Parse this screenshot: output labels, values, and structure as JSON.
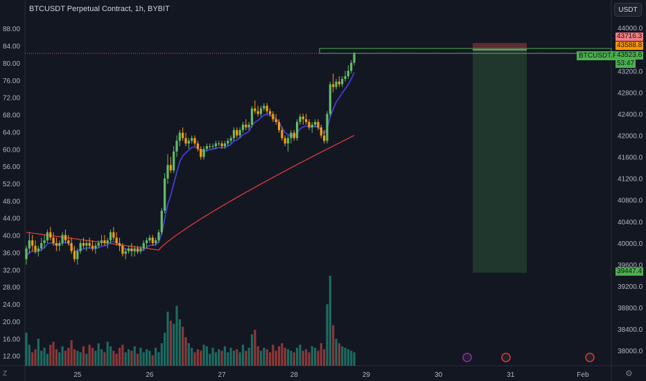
{
  "title": "BTCUSDT Perpetual Contract, 1h, BYBIT",
  "currency_button": "USDT",
  "symbol_tag": "BTCUSDT.P",
  "current_price": "43523.6",
  "countdown": "53:47",
  "tp_price": "43716.3",
  "entry_price": "43588.8",
  "sl_price": "39447.4",
  "logo_letter": "Z",
  "settings_icon": "gear-icon",
  "colors": {
    "up": "#26a69a",
    "down": "#ef5350",
    "up_candle": "#66bb6a",
    "down_candle": "#f59e0b",
    "ma_fast": "#3f3fd6",
    "ma_slow": "#e03a3a",
    "target": "#4caf50",
    "stop": "#ef5350"
  },
  "chart_data": {
    "type": "candlestick",
    "left_axis": {
      "ticks": [
        "88.00",
        "84.00",
        "80.00",
        "76.00",
        "72.00",
        "68.00",
        "64.00",
        "60.00",
        "56.00",
        "52.00",
        "48.00",
        "44.00",
        "40.00",
        "36.00",
        "32.00",
        "28.00",
        "24.00",
        "20.00",
        "16.00",
        "12.00"
      ],
      "range": [
        9.7,
        89.8
      ]
    },
    "right_axis": {
      "ticks": [
        "44000.0",
        "43200.0",
        "42800.0",
        "42400.0",
        "42000.0",
        "41600.0",
        "41200.0",
        "40800.0",
        "40400.0",
        "40000.0",
        "39600.0",
        "39200.0",
        "38800.0",
        "38400.0",
        "38000.0"
      ],
      "range": [
        37720,
        44130
      ]
    },
    "x_ticks": [
      "25",
      "26",
      "27",
      "28",
      "29",
      "30",
      "31",
      "Feb"
    ],
    "x_tick_slots": [
      17,
      41,
      65,
      89,
      113,
      137,
      161,
      185
    ],
    "candles_hourly": [
      [
        39700,
        39950,
        39600,
        39900
      ],
      [
        39900,
        40200,
        39800,
        40050
      ],
      [
        40050,
        40150,
        39850,
        39950
      ],
      [
        39950,
        40050,
        39800,
        39850
      ],
      [
        39850,
        39950,
        39750,
        39900
      ],
      [
        39900,
        40100,
        39850,
        40000
      ],
      [
        40000,
        40150,
        39900,
        40050
      ],
      [
        40050,
        40250,
        40000,
        40200
      ],
      [
        40200,
        40300,
        40050,
        40100
      ],
      [
        40100,
        40200,
        39950,
        40000
      ],
      [
        40000,
        40100,
        39850,
        39950
      ],
      [
        39950,
        40050,
        39850,
        40000
      ],
      [
        40000,
        40200,
        39950,
        40150
      ],
      [
        40150,
        40250,
        40000,
        40050
      ],
      [
        40050,
        40150,
        39950,
        40000
      ],
      [
        40000,
        40100,
        39800,
        39850
      ],
      [
        39850,
        39950,
        39650,
        39700
      ],
      [
        39700,
        39900,
        39600,
        39850
      ],
      [
        39850,
        40050,
        39800,
        40000
      ],
      [
        40000,
        40100,
        39900,
        39950
      ],
      [
        39950,
        40050,
        39850,
        40000
      ],
      [
        40000,
        40100,
        39900,
        39950
      ],
      [
        39950,
        40050,
        39850,
        39900
      ],
      [
        39900,
        40000,
        39800,
        39950
      ],
      [
        39950,
        40050,
        39900,
        40000
      ],
      [
        40000,
        40150,
        39950,
        40050
      ],
      [
        40050,
        40150,
        39950,
        40000
      ],
      [
        40000,
        40100,
        39900,
        40050
      ],
      [
        40050,
        40250,
        40000,
        40200
      ],
      [
        40200,
        40300,
        40050,
        40100
      ],
      [
        40100,
        40200,
        39950,
        40000
      ],
      [
        40000,
        40100,
        39850,
        39950
      ],
      [
        39950,
        40000,
        39750,
        39800
      ],
      [
        39800,
        39900,
        39700,
        39850
      ],
      [
        39850,
        39950,
        39800,
        39900
      ],
      [
        39900,
        40000,
        39750,
        39850
      ],
      [
        39850,
        39950,
        39750,
        39900
      ],
      [
        39900,
        39950,
        39800,
        39850
      ],
      [
        39850,
        39950,
        39800,
        39900
      ],
      [
        39900,
        40050,
        39850,
        40000
      ],
      [
        40000,
        40100,
        39900,
        40050
      ],
      [
        40050,
        40150,
        40000,
        40100
      ],
      [
        40100,
        40150,
        39950,
        40000
      ],
      [
        40000,
        40100,
        39950,
        40050
      ],
      [
        40050,
        40250,
        40000,
        40200
      ],
      [
        40200,
        40650,
        40150,
        40600
      ],
      [
        40600,
        41300,
        40550,
        41200
      ],
      [
        41200,
        41650,
        41100,
        41450
      ],
      [
        41450,
        41600,
        41300,
        41350
      ],
      [
        41350,
        41800,
        41300,
        41700
      ],
      [
        41700,
        42000,
        41600,
        41900
      ],
      [
        41900,
        42100,
        41800,
        42050
      ],
      [
        42050,
        42150,
        41900,
        41950
      ],
      [
        41950,
        42050,
        41800,
        41850
      ],
      [
        41850,
        41950,
        41750,
        41900
      ],
      [
        41900,
        42000,
        41850,
        41950
      ],
      [
        41950,
        42000,
        41800,
        41850
      ],
      [
        41850,
        41900,
        41700,
        41750
      ],
      [
        41750,
        41800,
        41550,
        41600
      ],
      [
        41600,
        41800,
        41550,
        41750
      ],
      [
        41750,
        41850,
        41700,
        41800
      ],
      [
        41800,
        41850,
        41750,
        41800
      ],
      [
        41800,
        41850,
        41750,
        41800
      ],
      [
        41800,
        41900,
        41750,
        41850
      ],
      [
        41850,
        41900,
        41800,
        41850
      ],
      [
        41850,
        41900,
        41750,
        41800
      ],
      [
        41800,
        41900,
        41750,
        41850
      ],
      [
        41850,
        41950,
        41800,
        41900
      ],
      [
        41900,
        42000,
        41850,
        41950
      ],
      [
        41950,
        42150,
        41900,
        42100
      ],
      [
        42100,
        42150,
        41950,
        42000
      ],
      [
        42000,
        42150,
        41950,
        42100
      ],
      [
        42100,
        42250,
        42050,
        42200
      ],
      [
        42200,
        42300,
        42100,
        42150
      ],
      [
        42150,
        42250,
        42100,
        42200
      ],
      [
        42200,
        42550,
        42150,
        42500
      ],
      [
        42500,
        42650,
        42400,
        42450
      ],
      [
        42450,
        42550,
        42350,
        42400
      ],
      [
        42400,
        42550,
        42350,
        42500
      ],
      [
        42500,
        42600,
        42450,
        42550
      ],
      [
        42550,
        42600,
        42400,
        42450
      ],
      [
        42450,
        42500,
        42350,
        42400
      ],
      [
        42400,
        42450,
        42250,
        42300
      ],
      [
        42300,
        42400,
        42200,
        42250
      ],
      [
        42250,
        42300,
        42050,
        42100
      ],
      [
        42100,
        42150,
        41900,
        41950
      ],
      [
        41950,
        42000,
        41800,
        41850
      ],
      [
        41850,
        42000,
        41700,
        41950
      ],
      [
        41950,
        42100,
        41850,
        42050
      ],
      [
        42050,
        42100,
        41900,
        41950
      ],
      [
        41950,
        42300,
        41900,
        42250
      ],
      [
        42250,
        42400,
        42200,
        42350
      ],
      [
        42350,
        42400,
        42200,
        42300
      ],
      [
        42300,
        42400,
        42200,
        42250
      ],
      [
        42250,
        42300,
        42100,
        42150
      ],
      [
        42150,
        42250,
        42050,
        42200
      ],
      [
        42200,
        42300,
        42150,
        42250
      ],
      [
        42250,
        42300,
        42100,
        42150
      ],
      [
        42150,
        42200,
        41950,
        42000
      ],
      [
        42000,
        42100,
        41850,
        41900
      ],
      [
        41900,
        42450,
        41850,
        42400
      ],
      [
        42400,
        43000,
        42350,
        42950
      ],
      [
        42950,
        43150,
        42800,
        42900
      ],
      [
        42900,
        43050,
        42850,
        43000
      ],
      [
        43000,
        43100,
        42900,
        42950
      ],
      [
        42950,
        43100,
        42900,
        43050
      ],
      [
        43050,
        43200,
        43000,
        43100
      ],
      [
        43100,
        43300,
        43050,
        43200
      ],
      [
        43200,
        43400,
        43150,
        43350
      ],
      [
        43350,
        43550,
        43300,
        43524
      ]
    ],
    "ma_fast_end": 43200,
    "ma_slow_end": 42000,
    "volume": [
      22,
      14,
      9,
      11,
      18,
      10,
      12,
      8,
      14,
      16,
      11,
      9,
      13,
      10,
      12,
      17,
      11,
      10,
      9,
      13,
      8,
      14,
      12,
      10,
      15,
      11,
      9,
      16,
      13,
      10,
      8,
      12,
      14,
      9,
      11,
      10,
      13,
      8,
      12,
      9,
      11,
      10,
      7,
      12,
      9,
      15,
      22,
      36,
      30,
      28,
      40,
      31,
      26,
      19,
      15,
      12,
      9,
      11,
      10,
      14,
      13,
      8,
      12,
      9,
      11,
      10,
      13,
      9,
      12,
      10,
      11,
      9,
      14,
      10,
      12,
      21,
      24,
      13,
      10,
      12,
      11,
      9,
      14,
      10,
      13,
      15,
      12,
      11,
      10,
      9,
      12,
      14,
      10,
      11,
      9,
      13,
      12,
      10,
      15,
      11,
      41,
      60,
      27,
      18,
      15,
      13,
      12,
      11,
      10,
      9
    ],
    "vol_range": [
      0,
      64
    ],
    "position": {
      "type": "long",
      "entry": 43588.8,
      "target": 43716.3,
      "stop": 39447.4
    }
  }
}
